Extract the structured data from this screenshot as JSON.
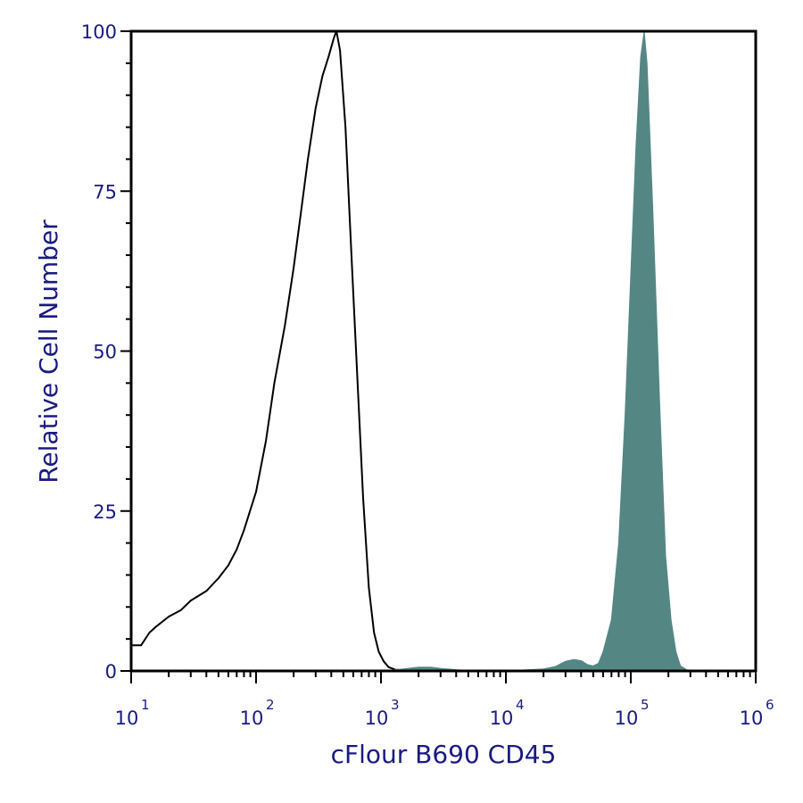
{
  "chart_data": {
    "type": "area",
    "xlabel": "cFlour B690 CD45",
    "ylabel": "Relative Cell Number",
    "xscale": "log",
    "xlim": [
      10,
      1000000
    ],
    "ylim": [
      0,
      100
    ],
    "x_ticks": [
      {
        "base": "10",
        "exp": "1",
        "value": 10
      },
      {
        "base": "10",
        "exp": "2",
        "value": 100
      },
      {
        "base": "10",
        "exp": "3",
        "value": 1000
      },
      {
        "base": "10",
        "exp": "4",
        "value": 10000
      },
      {
        "base": "10",
        "exp": "5",
        "value": 100000
      },
      {
        "base": "10",
        "exp": "6",
        "value": 1000000
      }
    ],
    "y_ticks": [
      "0",
      "25",
      "50",
      "75",
      "100"
    ],
    "grid": false,
    "legend": "none",
    "series": [
      {
        "style": "outline",
        "color": "#000000",
        "x": [
          10,
          12,
          14,
          16,
          20,
          25,
          30,
          40,
          50,
          60,
          70,
          80,
          100,
          120,
          140,
          170,
          200,
          230,
          260,
          300,
          340,
          380,
          420,
          440,
          470,
          520,
          580,
          650,
          720,
          800,
          880,
          960,
          1050,
          1150,
          1300,
          1500,
          2000,
          3000
        ],
        "y": [
          4,
          4,
          6,
          7,
          8.5,
          9.5,
          11,
          12.5,
          14.5,
          16.5,
          19,
          22,
          28,
          36,
          45,
          54,
          63,
          72,
          80,
          88,
          93,
          96,
          99,
          100,
          97,
          85,
          65,
          45,
          27,
          13,
          6,
          3,
          1.5,
          0.6,
          0.2,
          0.1,
          0,
          0
        ]
      },
      {
        "style": "filled",
        "color": "#548784",
        "x": [
          1000,
          1500,
          2000,
          2500,
          3000,
          4000,
          6000,
          10000,
          20000,
          25000,
          30000,
          35000,
          40000,
          45000,
          50000,
          55000,
          60000,
          70000,
          80000,
          90000,
          100000,
          110000,
          120000,
          128000,
          135000,
          150000,
          170000,
          190000,
          210000,
          230000,
          250000,
          280000,
          320000
        ],
        "y": [
          0,
          0.3,
          0.6,
          0.6,
          0.4,
          0.2,
          0,
          0,
          0.3,
          0.7,
          1.5,
          1.8,
          1.6,
          1,
          0.8,
          1.2,
          3,
          8,
          20,
          40,
          62,
          82,
          96,
          100,
          95,
          72,
          42,
          18,
          8,
          3,
          0.8,
          0.2,
          0
        ]
      }
    ]
  }
}
